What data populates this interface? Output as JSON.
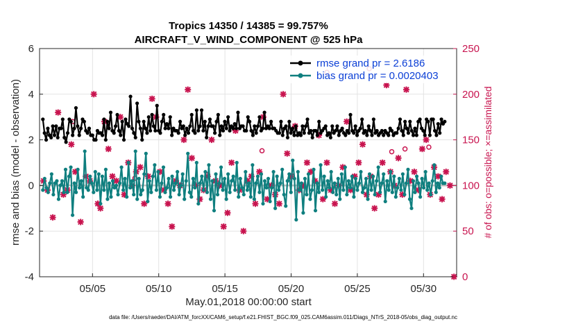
{
  "chart_data": {
    "type": "line",
    "title_line1": "Tropics 14350 / 14385 = 99.757%",
    "title_line2": "AIRCRAFT_V_WIND_COMPONENT @ 525 hPa",
    "xlabel": "May.01,2018 00:00:00 start",
    "ylabel": "rmse and bias (model - observation)",
    "ylabel_right": "# of obs: o=possible; ×=assimilated",
    "footer": "data file: /Users/raeder/DAI/ATM_forcXX/CAM6_setup/f.e21.FHIST_BGC.f09_025.CAM6assim.011/Diags_NTrS_2018-05/obs_diag_output.nc",
    "xlim": [
      1,
      32.5
    ],
    "ylim": [
      -4,
      6
    ],
    "ylim_right": [
      0,
      250
    ],
    "x_ticks": [
      5,
      10,
      15,
      20,
      25,
      30
    ],
    "x_tick_labels": [
      "05/05",
      "05/10",
      "05/15",
      "05/20",
      "05/25",
      "05/30"
    ],
    "y_ticks": [
      -4,
      -2,
      0,
      2,
      4,
      6
    ],
    "y_tick_labels": [
      "-4",
      "-2",
      "0",
      "2",
      "4",
      "6"
    ],
    "y_ticks_right": [
      0,
      50,
      100,
      150,
      200,
      250
    ],
    "y_tick_labels_right": [
      "0",
      "50",
      "100",
      "150",
      "200",
      "250"
    ],
    "grid": true,
    "legend_position": "top-right",
    "series": [
      {
        "name": "rmse grand pr = 2.6186",
        "axis": "left",
        "color": "#000000",
        "marker": "circle",
        "values": [
          2.9,
          2.3,
          2.0,
          2.5,
          2.2,
          2.1,
          2.6,
          2.2,
          2.6,
          2.1,
          2.5,
          2.5,
          2.9,
          2.1,
          1.9,
          2.3,
          2.9,
          2.8,
          2.2,
          2.5,
          3.4,
          2.6,
          2.2,
          2.5,
          2.9,
          2.8,
          2.4,
          2.3,
          2.5,
          2.2,
          2.2,
          2.0,
          2.0,
          2.4,
          2.3,
          2.3,
          2.2,
          2.9,
          2.0,
          2.8,
          2.5,
          3.2,
          2.4,
          2.3,
          2.6,
          3.1,
          2.4,
          2.2,
          2.8,
          2.0,
          2.9,
          2.7,
          2.6,
          3.9,
          2.5,
          2.3,
          2.1,
          3.6,
          2.8,
          2.5,
          2.0,
          2.8,
          2.5,
          2.3,
          3.0,
          2.4,
          3.1,
          2.6,
          2.4,
          3.5,
          2.4,
          2.3,
          2.8,
          3.1,
          2.5,
          2.7,
          2.5,
          3.0,
          2.2,
          2.5,
          2.4,
          2.4,
          2.3,
          2.8,
          2.5,
          2.6,
          2.2,
          2.5,
          2.3,
          2.6,
          3.1,
          2.4,
          2.3,
          3.3,
          2.4,
          2.6,
          3.3,
          2.4,
          2.8,
          2.1,
          2.6,
          2.9,
          2.6,
          2.6,
          2.3,
          2.8,
          3.1,
          2.2,
          2.6,
          2.4,
          2.8,
          2.5,
          3.0,
          2.4,
          2.6,
          2.5,
          2.7,
          2.5,
          3.2,
          2.5,
          2.6,
          2.6,
          2.4,
          2.4,
          3.0,
          2.8,
          2.4,
          2.2,
          2.6,
          2.3,
          2.6,
          3.0,
          2.4,
          2.5,
          3.2,
          2.5,
          2.6,
          2.5,
          2.8,
          2.5,
          2.5,
          2.4,
          2.3,
          2.3,
          2.8,
          2.2,
          2.5,
          2.6,
          2.1,
          2.8,
          2.3,
          2.5,
          2.2,
          2.6,
          2.2,
          2.3,
          2.2,
          2.6,
          2.3,
          2.6,
          2.9,
          2.3,
          2.4,
          2.1,
          2.4,
          2.4,
          2.2,
          2.8,
          2.3,
          2.4,
          2.5,
          2.6,
          2.2,
          2.3,
          2.1,
          2.6,
          2.3,
          2.4,
          2.6,
          2.2,
          2.4,
          2.5,
          2.3,
          2.2,
          2.4,
          2.3,
          3.1,
          2.4,
          2.3,
          2.6,
          2.2,
          2.4,
          2.5,
          2.9,
          2.3,
          2.4,
          2.2,
          2.6,
          2.4,
          2.2,
          2.9,
          2.3,
          2.4,
          2.2,
          2.3,
          2.4,
          2.2,
          2.4,
          2.3,
          2.2,
          2.5,
          2.4,
          2.2,
          2.3,
          2.3,
          2.5,
          2.9,
          2.4,
          2.2,
          2.8,
          2.5,
          2.3,
          2.8,
          2.4,
          2.2,
          2.5,
          2.2,
          2.8,
          2.9,
          2.5,
          2.4,
          2.2,
          2.9,
          2.8,
          2.2,
          2.9,
          2.9,
          2.4,
          2.2,
          2.7,
          2.3,
          2.9,
          2.7,
          2.8
        ]
      },
      {
        "name": "bias grand pr = 0.0020403",
        "axis": "left",
        "color": "#0f7f7f",
        "marker": "circle",
        "values": [
          -0.2,
          0.3,
          -0.1,
          -0.3,
          0.1,
          0.5,
          -0.4,
          0.1,
          0.2,
          -0.6,
          0.0,
          0.2,
          -0.3,
          0.7,
          -0.3,
          0.4,
          0.8,
          -1.3,
          0.1,
          -0.3,
          0.7,
          -0.1,
          0.2,
          -0.5,
          1.5,
          -0.1,
          -0.2,
          0.4,
          0.1,
          -0.3,
          0.6,
          -0.2,
          0.5,
          -0.8,
          0.4,
          -0.2,
          0.7,
          -0.6,
          0.1,
          -0.5,
          0.2,
          -0.1,
          0.0,
          -0.4,
          0.1,
          0.8,
          -0.2,
          0.3,
          -0.5,
          1.0,
          -0.1,
          0.2,
          -0.4,
          1.5,
          -0.6,
          0.3,
          -0.4,
          -0.2,
          0.5,
          1.4,
          -0.7,
          0.2,
          -0.3,
          0.4,
          0.9,
          -0.2,
          0.6,
          -0.5,
          0.1,
          0.8,
          -0.3,
          -0.1,
          0.3,
          -0.5,
          0.4,
          -0.2,
          0.1,
          0.6,
          -0.4,
          0.0,
          0.5,
          -0.6,
          0.2,
          1.4,
          -0.3,
          -0.5,
          0.3,
          -0.1,
          1.0,
          -0.8,
          0.1,
          0.4,
          -0.2,
          0.6,
          -0.3,
          0.9,
          -0.6,
          0.2,
          -1.1,
          0.5,
          -0.4,
          0.1,
          0.8,
          -0.2,
          0.3,
          -0.6,
          0.5,
          -0.3,
          0.2,
          0.4,
          -0.2,
          1.0,
          -0.5,
          0.3,
          -0.1,
          -0.4,
          0.6,
          -0.2,
          0.1,
          -0.5,
          0.9,
          -0.6,
          0.1,
          0.4,
          -0.3,
          0.5,
          -0.8,
          0.2,
          -0.1,
          0.3,
          -0.7,
          -0.1,
          0.6,
          -1.0,
          0.4,
          -0.2,
          0.1,
          0.7,
          -0.4,
          -0.9,
          0.2,
          0.5,
          -0.3,
          1.1,
          0.3,
          -1.5,
          0.6,
          -0.2,
          0.1,
          -1.2,
          0.3,
          -0.4,
          0.5,
          -0.6,
          -0.2,
          0.7,
          -1.1,
          0.1,
          -0.3,
          0.9,
          -0.2,
          0.4,
          -0.5,
          0.2,
          -0.1,
          0.6,
          -0.3,
          0.1,
          -0.4,
          0.3,
          -0.6,
          0.5,
          -0.2,
          0.8,
          -0.4,
          0.2,
          -0.1,
          0.4,
          -0.5,
          0.3,
          -0.2,
          0.1,
          0.6,
          -0.3,
          -0.1,
          0.3,
          -0.6,
          0.5,
          -0.2,
          0.4,
          -0.4,
          0.2,
          0.8,
          -0.3,
          0.1,
          0.5,
          -0.7,
          0.2,
          -0.2,
          0.6,
          -0.3,
          0.4,
          -0.5,
          -0.1,
          0.3,
          -0.2,
          0.5,
          -0.4,
          0.1,
          0.7,
          -0.6,
          -1.0,
          0.2,
          -0.3,
          0.4,
          0.1,
          -0.5,
          0.3,
          -0.1,
          0.6,
          -0.2,
          0.1,
          -0.4,
          0.2,
          0.9,
          -0.3,
          0.1,
          -0.1,
          0.4,
          0.1,
          0.1
        ]
      },
      {
        "name": "obs possible (o)",
        "axis": "right",
        "color": "#c8144f",
        "marker": "circle-open",
        "x": [
          3.5,
          8.2,
          13.7,
          17.8,
          22.7,
          25.9,
          27.6,
          28.6,
          30.4
        ],
        "values": [
          170,
          108,
          112,
          138,
          224,
          228,
          137,
          140,
          142
        ]
      },
      {
        "name": "obs assimilated (×)",
        "axis": "right",
        "color": "#c8144f",
        "marker": "x",
        "x": [
          1.3,
          1.6,
          2.0,
          2.4,
          2.8,
          3.1,
          3.4,
          3.7,
          4.1,
          4.5,
          4.8,
          5.1,
          5.4,
          5.6,
          5.9,
          6.2,
          6.5,
          6.8,
          7.1,
          7.4,
          7.7,
          8.0,
          8.3,
          8.6,
          8.9,
          9.2,
          9.5,
          9.8,
          10.1,
          10.4,
          10.7,
          11.0,
          11.3,
          11.6,
          11.9,
          12.2,
          12.5,
          12.8,
          13.1,
          13.4,
          13.7,
          14.0,
          14.3,
          14.6,
          14.9,
          15.2,
          15.5,
          15.8,
          16.1,
          16.4,
          16.7,
          17.0,
          17.3,
          17.6,
          17.9,
          18.2,
          18.5,
          18.8,
          19.1,
          19.4,
          19.7,
          20.0,
          20.3,
          20.6,
          20.9,
          21.2,
          21.5,
          21.8,
          22.1,
          22.4,
          22.7,
          23.0,
          23.3,
          23.6,
          23.9,
          24.2,
          24.5,
          24.8,
          25.1,
          25.4,
          25.7,
          26.0,
          26.3,
          26.6,
          26.9,
          27.2,
          27.5,
          27.8,
          28.1,
          28.4,
          28.7,
          29.0,
          29.3,
          29.6,
          29.9,
          30.2,
          30.5,
          30.8,
          31.1,
          31.4,
          31.7,
          32.0,
          32.3
        ],
        "values": [
          105,
          95,
          65,
          180,
          90,
          95,
          145,
          115,
          60,
          110,
          105,
          200,
          80,
          75,
          170,
          140,
          110,
          105,
          175,
          90,
          125,
          100,
          115,
          120,
          80,
          110,
          195,
          175,
          115,
          95,
          80,
          55,
          105,
          100,
          150,
          205,
          130,
          100,
          85,
          95,
          110,
          150,
          105,
          100,
          55,
          70,
          125,
          160,
          95,
          50,
          105,
          110,
          80,
          115,
          175,
          85,
          100,
          90,
          80,
          200,
          135,
          110,
          165,
          95,
          100,
          125,
          115,
          105,
          155,
          85,
          125,
          95,
          80,
          100,
          120,
          170,
          95,
          110,
          125,
          145,
          90,
          110,
          75,
          90,
          125,
          210,
          115,
          100,
          130,
          90,
          205,
          105,
          115,
          95,
          140,
          150,
          90,
          120,
          110,
          85,
          115,
          100,
          0
        ]
      }
    ]
  }
}
